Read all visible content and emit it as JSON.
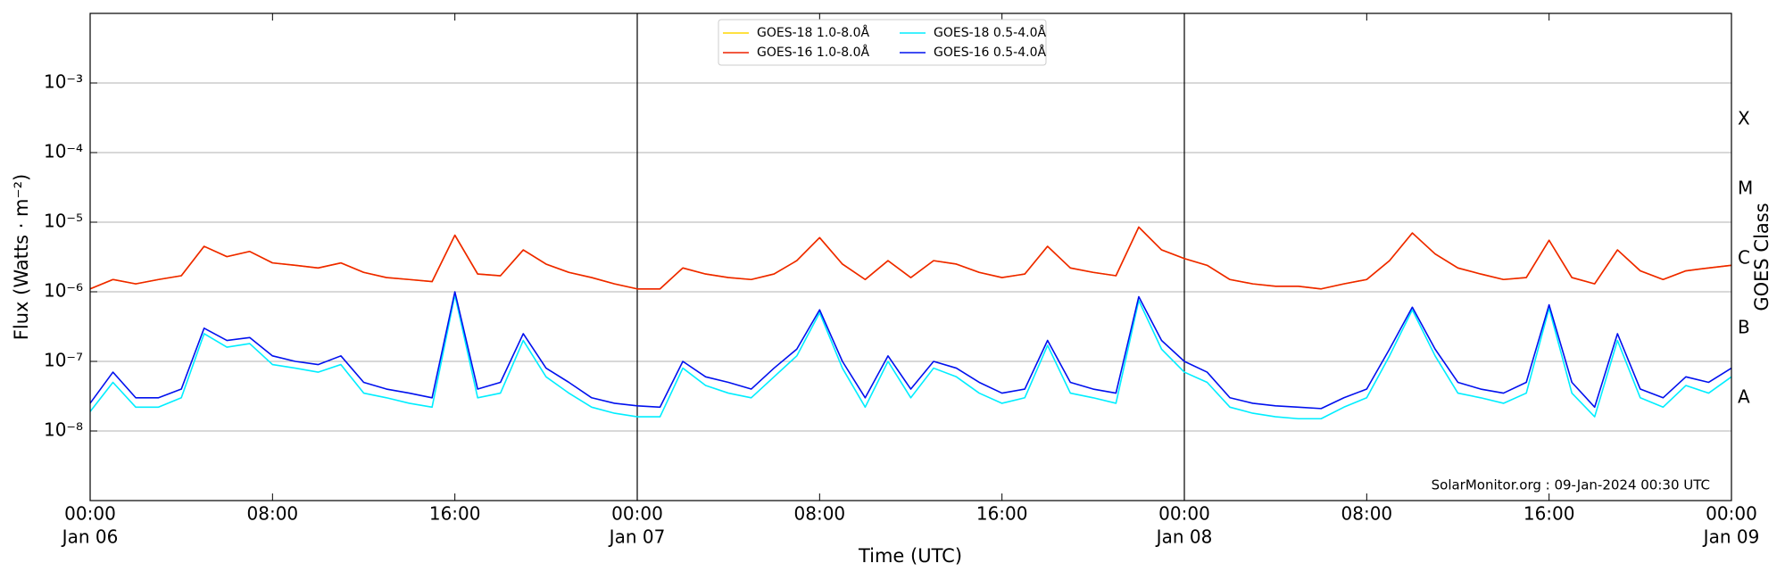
{
  "chart_data": {
    "type": "line",
    "xlabel": "Time (UTC)",
    "ylabel": "Flux (Watts · m⁻²)",
    "y2label": "GOES Class",
    "annotation": "SolarMonitor.org : 09-Jan-2024 00:30 UTC",
    "xlim": [
      0,
      72
    ],
    "xticks": [
      {
        "value": 0,
        "label": "00:00"
      },
      {
        "value": 8,
        "label": "08:00"
      },
      {
        "value": 16,
        "label": "16:00"
      },
      {
        "value": 24,
        "label": "00:00"
      },
      {
        "value": 32,
        "label": "08:00"
      },
      {
        "value": 40,
        "label": "16:00"
      },
      {
        "value": 48,
        "label": "00:00"
      },
      {
        "value": 56,
        "label": "08:00"
      },
      {
        "value": 64,
        "label": "16:00"
      },
      {
        "value": 72,
        "label": "00:00"
      }
    ],
    "xdate_labels": [
      {
        "value": 0,
        "label": "Jan 06"
      },
      {
        "value": 24,
        "label": "Jan 07"
      },
      {
        "value": 48,
        "label": "Jan 08"
      },
      {
        "value": 72,
        "label": "Jan 09"
      }
    ],
    "vlines": [
      24,
      48
    ],
    "ylog": true,
    "ylim": [
      1e-09,
      0.01
    ],
    "yticks": [
      {
        "value": 1e-08,
        "label": "10⁻⁸"
      },
      {
        "value": 1e-07,
        "label": "10⁻⁷"
      },
      {
        "value": 1e-06,
        "label": "10⁻⁶"
      },
      {
        "value": 1e-05,
        "label": "10⁻⁵"
      },
      {
        "value": 0.0001,
        "label": "10⁻⁴"
      },
      {
        "value": 0.001,
        "label": "10⁻³"
      }
    ],
    "y2lim": [
      1e-09,
      0.01
    ],
    "y2ticks": [
      {
        "value": 3e-08,
        "label": "A"
      },
      {
        "value": 3e-07,
        "label": "B"
      },
      {
        "value": 3e-06,
        "label": "C"
      },
      {
        "value": 3e-05,
        "label": "M"
      },
      {
        "value": 0.0003,
        "label": "X"
      }
    ],
    "grid": true,
    "legend": "upper center",
    "x": [
      0,
      1,
      2,
      3,
      4,
      5,
      6,
      7,
      8,
      9,
      10,
      11,
      12,
      13,
      14,
      15,
      16,
      17,
      18,
      19,
      20,
      21,
      22,
      23,
      24,
      25,
      26,
      27,
      28,
      29,
      30,
      31,
      32,
      33,
      34,
      35,
      36,
      37,
      38,
      39,
      40,
      41,
      42,
      43,
      44,
      45,
      46,
      47,
      48,
      49,
      50,
      51,
      52,
      53,
      54,
      55,
      56,
      57,
      58,
      59,
      60,
      61,
      62,
      63,
      64,
      65,
      66,
      67,
      68,
      69,
      70,
      71,
      72
    ],
    "series": [
      {
        "name": "GOES-18 1.0-8.0Å",
        "color": "#ffd700",
        "values": [
          1.1e-06,
          1.5e-06,
          1.3e-06,
          1.5e-06,
          1.7e-06,
          4.5e-06,
          3.2e-06,
          3.8e-06,
          2.6e-06,
          2.4e-06,
          2.2e-06,
          2.6e-06,
          1.9e-06,
          1.6e-06,
          1.5e-06,
          1.4e-06,
          6.5e-06,
          1.8e-06,
          1.7e-06,
          4e-06,
          2.5e-06,
          1.9e-06,
          1.6e-06,
          1.3e-06,
          1.1e-06,
          1.1e-06,
          2.2e-06,
          1.8e-06,
          1.6e-06,
          1.5e-06,
          1.8e-06,
          2.8e-06,
          6e-06,
          2.5e-06,
          1.5e-06,
          2.8e-06,
          1.6e-06,
          2.8e-06,
          2.5e-06,
          1.9e-06,
          1.6e-06,
          1.8e-06,
          4.5e-06,
          2.2e-06,
          1.9e-06,
          1.7e-06,
          8.5e-06,
          4e-06,
          3e-06,
          2.4e-06,
          1.5e-06,
          1.3e-06,
          1.2e-06,
          1.2e-06,
          1.1e-06,
          1.3e-06,
          1.5e-06,
          2.8e-06,
          7e-06,
          3.5e-06,
          2.2e-06,
          1.8e-06,
          1.5e-06,
          1.6e-06,
          5.5e-06,
          1.6e-06,
          1.3e-06,
          4e-06,
          2e-06,
          1.5e-06,
          2e-06,
          2.2e-06,
          2.4e-06
        ]
      },
      {
        "name": "GOES-16 1.0-8.0Å",
        "color": "#ee2200",
        "values": [
          1.1e-06,
          1.5e-06,
          1.3e-06,
          1.5e-06,
          1.7e-06,
          4.5e-06,
          3.2e-06,
          3.8e-06,
          2.6e-06,
          2.4e-06,
          2.2e-06,
          2.6e-06,
          1.9e-06,
          1.6e-06,
          1.5e-06,
          1.4e-06,
          6.5e-06,
          1.8e-06,
          1.7e-06,
          4e-06,
          2.5e-06,
          1.9e-06,
          1.6e-06,
          1.3e-06,
          1.1e-06,
          1.1e-06,
          2.2e-06,
          1.8e-06,
          1.6e-06,
          1.5e-06,
          1.8e-06,
          2.8e-06,
          6e-06,
          2.5e-06,
          1.5e-06,
          2.8e-06,
          1.6e-06,
          2.8e-06,
          2.5e-06,
          1.9e-06,
          1.6e-06,
          1.8e-06,
          4.5e-06,
          2.2e-06,
          1.9e-06,
          1.7e-06,
          8.5e-06,
          4e-06,
          3e-06,
          2.4e-06,
          1.5e-06,
          1.3e-06,
          1.2e-06,
          1.2e-06,
          1.1e-06,
          1.3e-06,
          1.5e-06,
          2.8e-06,
          7e-06,
          3.5e-06,
          2.2e-06,
          1.8e-06,
          1.5e-06,
          1.6e-06,
          5.5e-06,
          1.6e-06,
          1.3e-06,
          4e-06,
          2e-06,
          1.5e-06,
          2e-06,
          2.2e-06,
          2.4e-06
        ]
      },
      {
        "name": "GOES-18 0.5-4.0Å",
        "color": "#00eeff",
        "values": [
          1.9e-08,
          5e-08,
          2.2e-08,
          2.2e-08,
          3e-08,
          2.5e-07,
          1.6e-07,
          1.8e-07,
          9e-08,
          8e-08,
          7e-08,
          9e-08,
          3.5e-08,
          3e-08,
          2.5e-08,
          2.2e-08,
          9e-07,
          3e-08,
          3.5e-08,
          2e-07,
          6e-08,
          3.5e-08,
          2.2e-08,
          1.8e-08,
          1.6e-08,
          1.6e-08,
          8e-08,
          4.5e-08,
          3.5e-08,
          3e-08,
          6e-08,
          1.2e-07,
          5e-07,
          8e-08,
          2.2e-08,
          1e-07,
          3e-08,
          8e-08,
          6e-08,
          3.5e-08,
          2.5e-08,
          3e-08,
          1.7e-07,
          3.5e-08,
          3e-08,
          2.5e-08,
          7.5e-07,
          1.5e-07,
          7e-08,
          5e-08,
          2.2e-08,
          1.8e-08,
          1.6e-08,
          1.5e-08,
          1.5e-08,
          2.2e-08,
          3e-08,
          1.2e-07,
          5.5e-07,
          1.2e-07,
          3.5e-08,
          3e-08,
          2.5e-08,
          3.5e-08,
          5.8e-07,
          3.5e-08,
          1.6e-08,
          2e-07,
          3e-08,
          2.2e-08,
          4.5e-08,
          3.5e-08,
          6e-08
        ]
      },
      {
        "name": "GOES-16 0.5-4.0Å",
        "color": "#0010ee",
        "values": [
          2.5e-08,
          7e-08,
          3e-08,
          3e-08,
          4e-08,
          3e-07,
          2e-07,
          2.2e-07,
          1.2e-07,
          1e-07,
          9e-08,
          1.2e-07,
          5e-08,
          4e-08,
          3.5e-08,
          3e-08,
          1e-06,
          4e-08,
          5e-08,
          2.5e-07,
          8e-08,
          5e-08,
          3e-08,
          2.5e-08,
          2.3e-08,
          2.2e-08,
          1e-07,
          6e-08,
          5e-08,
          4e-08,
          8e-08,
          1.5e-07,
          5.5e-07,
          1e-07,
          3e-08,
          1.2e-07,
          4e-08,
          1e-07,
          8e-08,
          5e-08,
          3.5e-08,
          4e-08,
          2e-07,
          5e-08,
          4e-08,
          3.5e-08,
          8.5e-07,
          2e-07,
          1e-07,
          7e-08,
          3e-08,
          2.5e-08,
          2.3e-08,
          2.2e-08,
          2.1e-08,
          3e-08,
          4e-08,
          1.5e-07,
          6e-07,
          1.5e-07,
          5e-08,
          4e-08,
          3.5e-08,
          5e-08,
          6.5e-07,
          5e-08,
          2.2e-08,
          2.5e-07,
          4e-08,
          3e-08,
          6e-08,
          5e-08,
          8e-08
        ]
      }
    ]
  }
}
